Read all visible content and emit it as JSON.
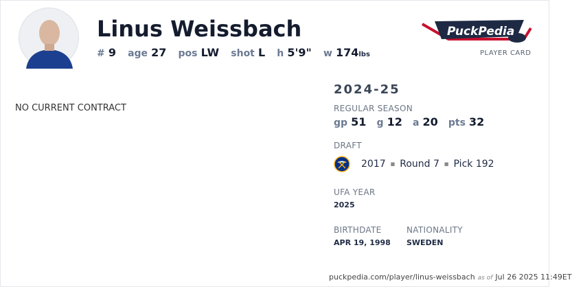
{
  "player": {
    "name": "Linus Weissbach",
    "number_label": "#",
    "number": "9",
    "age_label": "age",
    "age": "27",
    "pos_label": "pos",
    "pos": "LW",
    "shot_label": "shot",
    "shot": "L",
    "height_label": "h",
    "height": "5'9\"",
    "weight_label": "w",
    "weight": "174",
    "weight_unit": "lbs"
  },
  "brand": {
    "logo_text": "PuckPedia",
    "subtitle": "PLAYER CARD"
  },
  "contract": {
    "status": "NO CURRENT CONTRACT"
  },
  "season": {
    "year": "2024-25",
    "label": "REGULAR SEASON",
    "gp_label": "gp",
    "gp": "51",
    "g_label": "g",
    "g": "12",
    "a_label": "a",
    "a": "20",
    "pts_label": "pts",
    "pts": "32"
  },
  "draft": {
    "label": "DRAFT",
    "team_icon": "buffalo-sabres-logo",
    "year": "2017",
    "round": "Round 7",
    "pick": "Pick 192"
  },
  "ufa": {
    "label": "UFA YEAR",
    "year": "2025"
  },
  "birthdate": {
    "label": "BIRTHDATE",
    "value": "APR 19, 1998"
  },
  "nationality": {
    "label": "NATIONALITY",
    "value": "SWEDEN"
  },
  "footer": {
    "url": "puckpedia.com/player/linus-weissbach",
    "as_of": "as of",
    "timestamp": "Jul 26 2025 11:49ET"
  },
  "colors": {
    "navy": "#1e2a44",
    "accent_red": "#c8102e",
    "sabres_blue": "#003087",
    "sabres_gold": "#fcb514"
  }
}
